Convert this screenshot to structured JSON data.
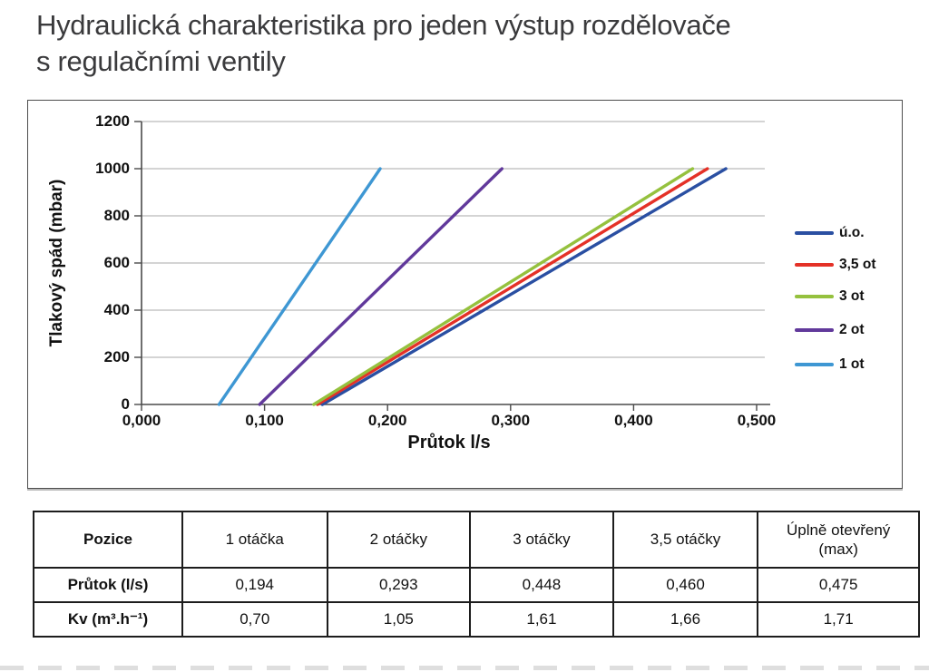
{
  "title": {
    "line1": "Hydraulická charakteristika pro jeden výstup rozdělovače",
    "line2": "s regulačními ventily"
  },
  "chart_data": {
    "type": "line",
    "title": "",
    "xlabel": "Průtok l/s",
    "ylabel": "Tlakový spád (mbar)",
    "xlim": [
      0.0,
      0.5
    ],
    "ylim": [
      0,
      1200
    ],
    "x_tick_labels": [
      "0,000",
      "0,100",
      "0,200",
      "0,300",
      "0,400",
      "0,500"
    ],
    "y_tick_labels": [
      "0",
      "200",
      "400",
      "600",
      "800",
      "1000",
      "1200"
    ],
    "grid": "horizontal-only",
    "legend_position": "right",
    "series": [
      {
        "name": "ú.o.",
        "color": "#2a4fa2",
        "points": [
          [
            0.147,
            0
          ],
          [
            0.475,
            1000
          ]
        ]
      },
      {
        "name": "3,5 ot",
        "color": "#e43127",
        "points": [
          [
            0.143,
            0
          ],
          [
            0.46,
            1000
          ]
        ]
      },
      {
        "name": "3 ot",
        "color": "#95c13e",
        "points": [
          [
            0.14,
            0
          ],
          [
            0.448,
            1000
          ]
        ]
      },
      {
        "name": "2 ot",
        "color": "#61399b",
        "points": [
          [
            0.096,
            0
          ],
          [
            0.293,
            1000
          ]
        ]
      },
      {
        "name": "1 ot",
        "color": "#3e97d3",
        "points": [
          [
            0.063,
            0
          ],
          [
            0.194,
            1000
          ]
        ]
      }
    ]
  },
  "table": {
    "headers": [
      "Pozice",
      "1 otáčka",
      "2 otáčky",
      "3 otáčky",
      "3,5 otáčky",
      "Úplně otevřený\n(max)"
    ],
    "rows": [
      {
        "label": "Průtok (l/s)",
        "values": [
          "0,194",
          "0,293",
          "0,448",
          "0,460",
          "0,475"
        ]
      },
      {
        "label": "Kv (m³.h⁻¹)",
        "values": [
          "0,70",
          "1,05",
          "1,61",
          "1,66",
          "1,71"
        ]
      }
    ]
  }
}
